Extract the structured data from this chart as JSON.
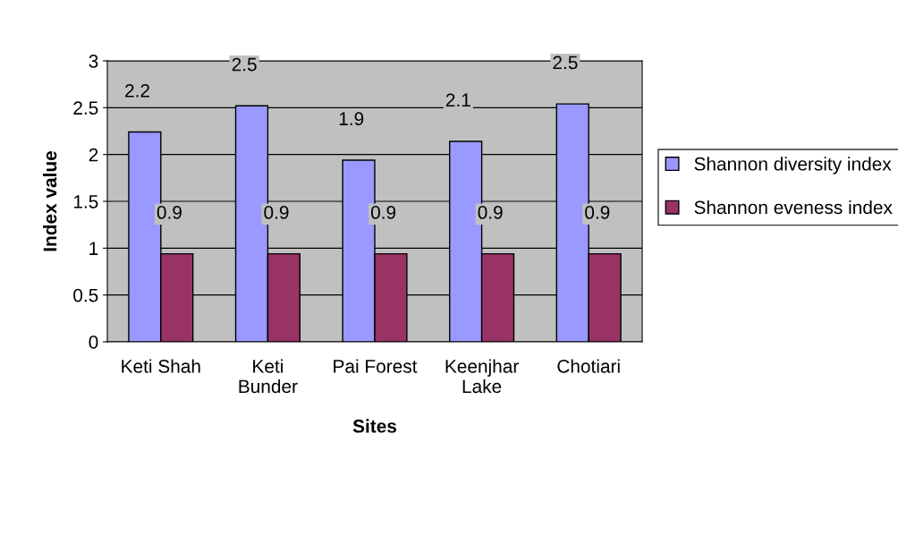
{
  "chart_data": {
    "type": "bar",
    "xlabel": "Sites",
    "ylabel": "Index value",
    "categories": [
      "Keti Shah",
      "Keti\nBunder",
      "Pai Forest",
      "Keenjhar\nLake",
      "Chotiari"
    ],
    "series": [
      {
        "name": "Shannon diversity index",
        "color": "#9999ff",
        "values": [
          2.24,
          2.52,
          1.94,
          2.14,
          2.54
        ],
        "value_labels": [
          "2.2",
          "2.5",
          "1.9",
          "2.1",
          "2.5"
        ]
      },
      {
        "name": "Shannon eveness index",
        "color": "#993366",
        "values": [
          0.94,
          0.94,
          0.94,
          0.94,
          0.94
        ],
        "value_labels": [
          "0.9",
          "0.9",
          "0.9",
          "0.9",
          "0.9"
        ]
      }
    ],
    "ylim": [
      0,
      3
    ],
    "yticks": [
      0,
      0.5,
      1,
      1.5,
      2,
      2.5,
      3
    ],
    "grid": "y",
    "legend": "right"
  }
}
